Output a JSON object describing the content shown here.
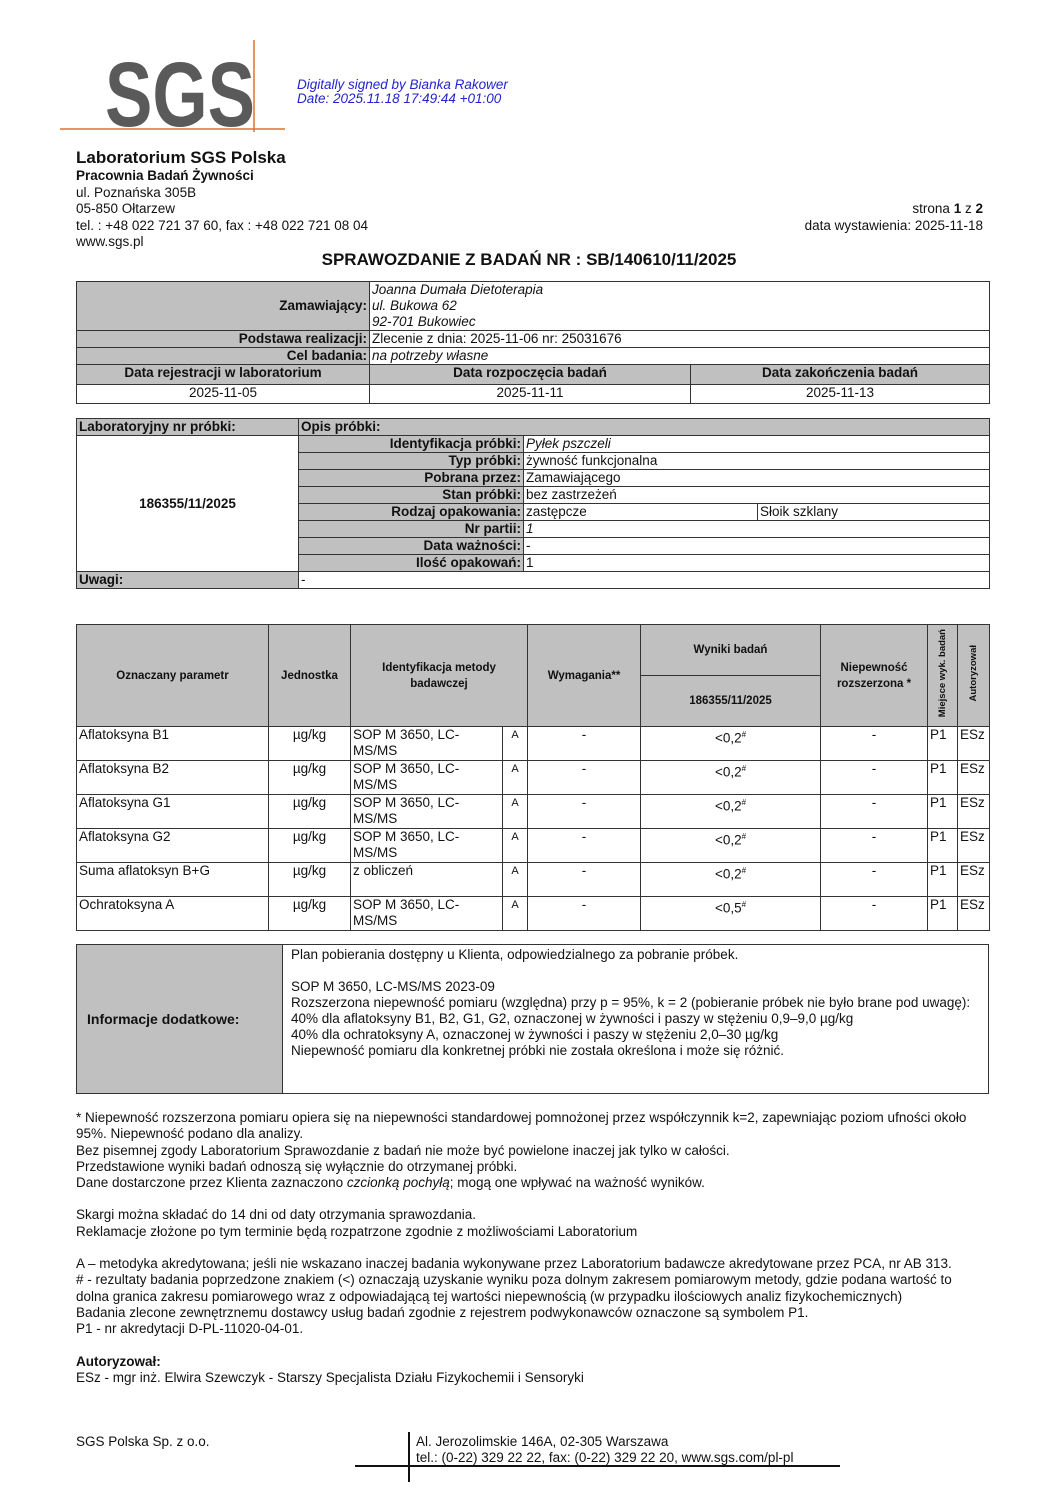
{
  "logo": {
    "text": "SGS",
    "color": "#5a5a5a",
    "line_color": "#e07030"
  },
  "signature": {
    "line1": "Digitally signed by Bianka Rakower",
    "line2": "Date: 2025.11.18 17:49:44 +01:00",
    "color": "#2323d0"
  },
  "lab": {
    "name": "Laboratorium SGS Polska",
    "dept": "Pracownia Badań Żywności",
    "street": "ul. Poznańska 305B",
    "city": "05-850 Ołtarzew",
    "phone": "tel. : +48 022 721 37 60, fax : +48 022 721 08 04",
    "www": "www.sgs.pl"
  },
  "page": {
    "label": "strona",
    "current": "1",
    "of": "z",
    "total": "2",
    "issue": "data wystawienia: 2025-11-18"
  },
  "title": "SPRAWOZDANIE Z BADAŃ NR : SB/140610/11/2025",
  "order": {
    "client_label": "Zamawiający:",
    "client": [
      "Joanna Dumała Dietoterapia",
      "ul. Bukowa 62",
      "92-701 Bukowiec"
    ],
    "basis_label": "Podstawa realizacji:",
    "basis": "Zlecenie z dnia: 2025-11-06 nr: 25031676",
    "purpose_label": "Cel badania:",
    "purpose": "na potrzeby własne",
    "dates_headers": [
      "Data rejestracji w laboratorium",
      "Data rozpoczęcia badań",
      "Data zakończenia badań"
    ],
    "dates": [
      "2025-11-05",
      "2025-11-11",
      "2025-11-13"
    ]
  },
  "sample": {
    "no_label": "Laboratoryjny nr próbki:",
    "desc_label": "Opis próbki:",
    "no": "186355/11/2025",
    "fields": [
      {
        "label": "Identyfikacja próbki:",
        "value": "Pyłek pszczeli",
        "italic": true
      },
      {
        "label": "Typ próbki:",
        "value": "żywność funkcjonalna"
      },
      {
        "label": "Pobrana przez:",
        "value": "Zamawiającego"
      },
      {
        "label": "Stan próbki:",
        "value": "bez zastrzeżeń"
      },
      {
        "label": "Rodzaj opakowania:",
        "value": "zastępcze",
        "value2": "Słoik szklany"
      },
      {
        "label": "Nr partii:",
        "value": "1",
        "italic": true
      },
      {
        "label": "Data ważności:",
        "value": "-"
      },
      {
        "label": "Ilość opakowań:",
        "value": "1"
      }
    ],
    "remarks_label": "Uwagi:",
    "remarks": "-"
  },
  "results": {
    "headers": {
      "param": "Oznaczany parametr",
      "unit": "Jednostka",
      "method": "Identyfikacja metody badawczej",
      "req": "Wymagania**",
      "results": "Wyniki badań",
      "sample": "186355/11/2025",
      "unc": "Niepewność rozszerzona *",
      "place": "Miejsce wyk. badań",
      "auth": "Autoryzował"
    },
    "rows": [
      {
        "param": "Aflatoksyna B1",
        "unit": "µg/kg",
        "method": "SOP M 3650, LC-MS/MS",
        "acc": "A",
        "req": "-",
        "result": "<0,2",
        "sup": "#",
        "unc": "-",
        "place": "P1",
        "auth": "ESz"
      },
      {
        "param": "Aflatoksyna  B2",
        "unit": "µg/kg",
        "method": "SOP M 3650, LC-MS/MS",
        "acc": "A",
        "req": "-",
        "result": "<0,2",
        "sup": "#",
        "unc": "-",
        "place": "P1",
        "auth": "ESz"
      },
      {
        "param": "Aflatoksyna  G1",
        "unit": "µg/kg",
        "method": "SOP M 3650, LC-MS/MS",
        "acc": "A",
        "req": "-",
        "result": "<0,2",
        "sup": "#",
        "unc": "-",
        "place": "P1",
        "auth": "ESz"
      },
      {
        "param": "Aflatoksyna G2",
        "unit": "µg/kg",
        "method": "SOP M 3650, LC-MS/MS",
        "acc": "A",
        "req": "-",
        "result": "<0,2",
        "sup": "#",
        "unc": "-",
        "place": "P1",
        "auth": "ESz"
      },
      {
        "param": "Suma aflatoksyn B+G",
        "unit": "µg/kg",
        "method": "z obliczeń",
        "acc": "A",
        "req": "-",
        "result": "<0,2",
        "sup": "#",
        "unc": "-",
        "place": "P1",
        "auth": "ESz"
      },
      {
        "param": "Ochratoksyna A",
        "unit": "µg/kg",
        "method": "SOP M 3650, LC-MS/MS",
        "acc": "A",
        "req": "-",
        "result": "<0,5",
        "sup": "#",
        "unc": "-",
        "place": "P1",
        "auth": "ESz"
      }
    ]
  },
  "info": {
    "label": "Informacje dodatkowe:",
    "lines": [
      "Plan pobierania dostępny u Klienta, odpowiedzialnego za pobranie próbek.",
      "",
      "SOP M 3650, LC-MS/MS 2023-09",
      "Rozszerzona niepewność pomiaru (względna) przy p = 95%, k = 2 (pobieranie próbek nie było brane pod uwagę):",
      "40% dla aflatoksyny B1, B2, G1, G2, oznaczonej w żywności i paszy w stężeniu 0,9–9,0 µg/kg",
      "40% dla ochratoksyny A, oznaczonej w żywności i paszy w stężeniu 2,0–30 µg/kg",
      "Niepewność pomiaru dla konkretnej próbki nie została określona i może się różnić."
    ]
  },
  "notes": {
    "block1": [
      "* Niepewność rozszerzona pomiaru opiera się na niepewności standardowej pomnożonej przez współczynnik k=2, zapewniając poziom ufności około 95%. Niepewność podano dla analizy.",
      "Bez pisemnej zgody Laboratorium Sprawozdanie z badań nie może być powielone inaczej jak tylko w całości.",
      "Przedstawione wyniki badań odnoszą się wyłącznie do otrzymanej próbki."
    ],
    "client_data_pre": "Dane dostarczone przez Klienta zaznaczono ",
    "client_data_em": "czcionką pochyłą",
    "client_data_post": "; mogą one wpływać na ważność wyników.",
    "block2": [
      "Skargi można składać do 14 dni od daty otrzymania sprawozdania.",
      "Reklamacje złożone po tym terminie będą rozpatrzone zgodnie z możliwościami Laboratorium"
    ],
    "block3": [
      "A – metodyka akredytowana; jeśli nie wskazano inaczej badania wykonywane przez Laboratorium badawcze akredytowane przez PCA, nr AB 313.",
      "# - rezultaty badania poprzedzone znakiem (<) oznaczają uzyskanie wyniku poza dolnym zakresem pomiarowym metody, gdzie podana wartość to dolna granica zakresu pomiarowego wraz z odpowiadającą tej wartości niepewnością (w przypadku ilościowych analiz fizykochemicznych)",
      "Badania zlecone zewnętrznemu dostawcy usług badań zgodnie z rejestrem podwykonawców oznaczone są symbolem P1.",
      "P1 -  nr akredytacji D-PL-11020-04-01."
    ],
    "auth_label": "Autoryzował:",
    "auth": "ESz - mgr inż. Elwira Szewczyk - Starszy Specjalista Działu Fizykochemii i Sensoryki"
  },
  "footer": {
    "company": "SGS Polska Sp. z o.o.",
    "address": "Al. Jerozolimskie 146A, 02-305 Warszawa",
    "contact": "tel.: (0-22) 329 22 22, fax: (0-22) 329 22 20, www.sgs.com/pl-pl"
  }
}
